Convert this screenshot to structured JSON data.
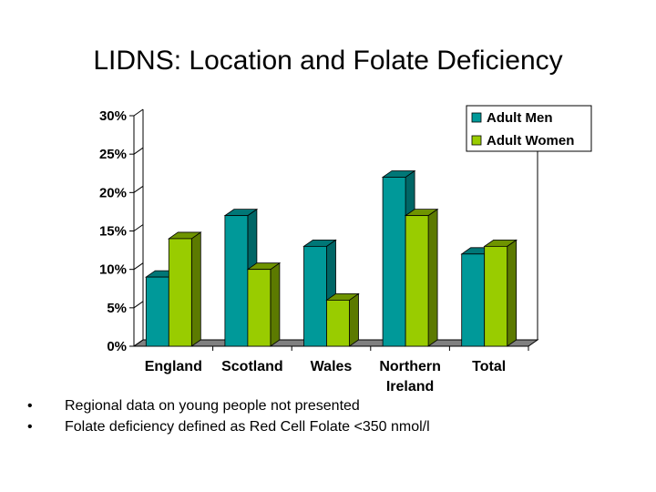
{
  "slide": {
    "title": "LIDNS: Location and Folate Deficiency",
    "bullets": [
      "Regional data on young people not presented",
      "Folate deficiency defined as Red Cell Folate <350 nmol/l"
    ],
    "bullet_glyph": "•"
  },
  "chart_data": {
    "type": "bar",
    "title": "",
    "xlabel": "",
    "ylabel": "",
    "categories": [
      [
        "England"
      ],
      [
        "Scotland"
      ],
      [
        "Wales"
      ],
      [
        "Northern",
        "Ireland"
      ],
      [
        "Total"
      ]
    ],
    "series": [
      {
        "name": "Adult Men",
        "values": [
          9,
          17,
          13,
          22,
          12
        ],
        "color": "#009999",
        "side_color": "#006666",
        "top_color": "#007777"
      },
      {
        "name": "Adult Women",
        "values": [
          14,
          10,
          6,
          17,
          13
        ],
        "color": "#99cc00",
        "side_color": "#5c7a00",
        "top_color": "#6f9400"
      }
    ],
    "ylim": [
      0,
      30
    ],
    "yticks": [
      "0%",
      "5%",
      "10%",
      "15%",
      "20%",
      "25%",
      "30%"
    ],
    "grid": false,
    "legend_position": "top-right",
    "floor_color": "#808080"
  }
}
